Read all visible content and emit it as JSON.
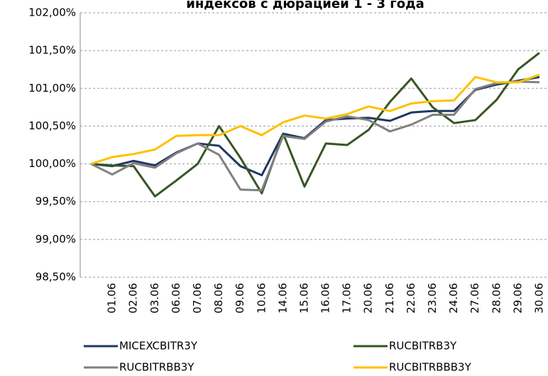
{
  "chart_data": {
    "type": "line",
    "title": "индексов с дюрацией 1 - 3 года",
    "categories": [
      null,
      "01.06",
      "02.06",
      "03.06",
      "06.06",
      "07.06",
      "08.06",
      "09.06",
      "10.06",
      "14.06",
      "15.06",
      "16.06",
      "17.06",
      "20.06",
      "21.06",
      "22.06",
      "23.06",
      "24.06",
      "27.06",
      "28.06",
      "29.06",
      "30.06"
    ],
    "series": [
      {
        "name": "MICEXCBITR3Y",
        "color": "#1f3864",
        "values": [
          100,
          99.97,
          100.04,
          99.98,
          100.15,
          100.27,
          100.24,
          99.97,
          99.85,
          100.4,
          100.34,
          100.58,
          100.6,
          100.61,
          100.57,
          100.68,
          100.7,
          100.7,
          100.98,
          101.05,
          101.1,
          101.15
        ]
      },
      {
        "name": "RUCBITRB3Y",
        "color": "#375623",
        "values": [
          100,
          99.98,
          99.97,
          99.57,
          99.78,
          100.0,
          100.5,
          100.08,
          99.61,
          100.4,
          99.7,
          100.27,
          100.25,
          100.45,
          100.82,
          101.13,
          100.75,
          100.54,
          100.58,
          100.85,
          101.25,
          101.47
        ]
      },
      {
        "name": "RUCBITRBB3Y",
        "color": "#808080",
        "values": [
          100,
          99.86,
          100.01,
          99.95,
          100.14,
          100.27,
          100.12,
          99.66,
          99.65,
          100.37,
          100.33,
          100.56,
          100.63,
          100.58,
          100.43,
          100.52,
          100.65,
          100.65,
          100.99,
          101.07,
          101.09,
          101.08
        ]
      },
      {
        "name": "RUCBITRBBB3Y",
        "color": "#ffc000",
        "values": [
          100,
          100.09,
          100.13,
          100.19,
          100.37,
          100.38,
          100.38,
          100.5,
          100.38,
          100.55,
          100.64,
          100.6,
          100.66,
          100.76,
          100.7,
          100.8,
          100.83,
          100.84,
          101.15,
          101.08,
          101.08,
          101.18
        ]
      }
    ],
    "ylim": [
      98.5,
      102
    ],
    "yticks": [
      {
        "value": 98.5,
        "label": "98,50%"
      },
      {
        "value": 99,
        "label": "99,00%"
      },
      {
        "value": 99.5,
        "label": "99,50%"
      },
      {
        "value": 100,
        "label": "100,00%"
      },
      {
        "value": 100.5,
        "label": "100,50%"
      },
      {
        "value": 101,
        "label": "101,00%"
      },
      {
        "value": 101.5,
        "label": "101,50%"
      },
      {
        "value": 102,
        "label": "102,00%"
      }
    ],
    "grid": true
  }
}
